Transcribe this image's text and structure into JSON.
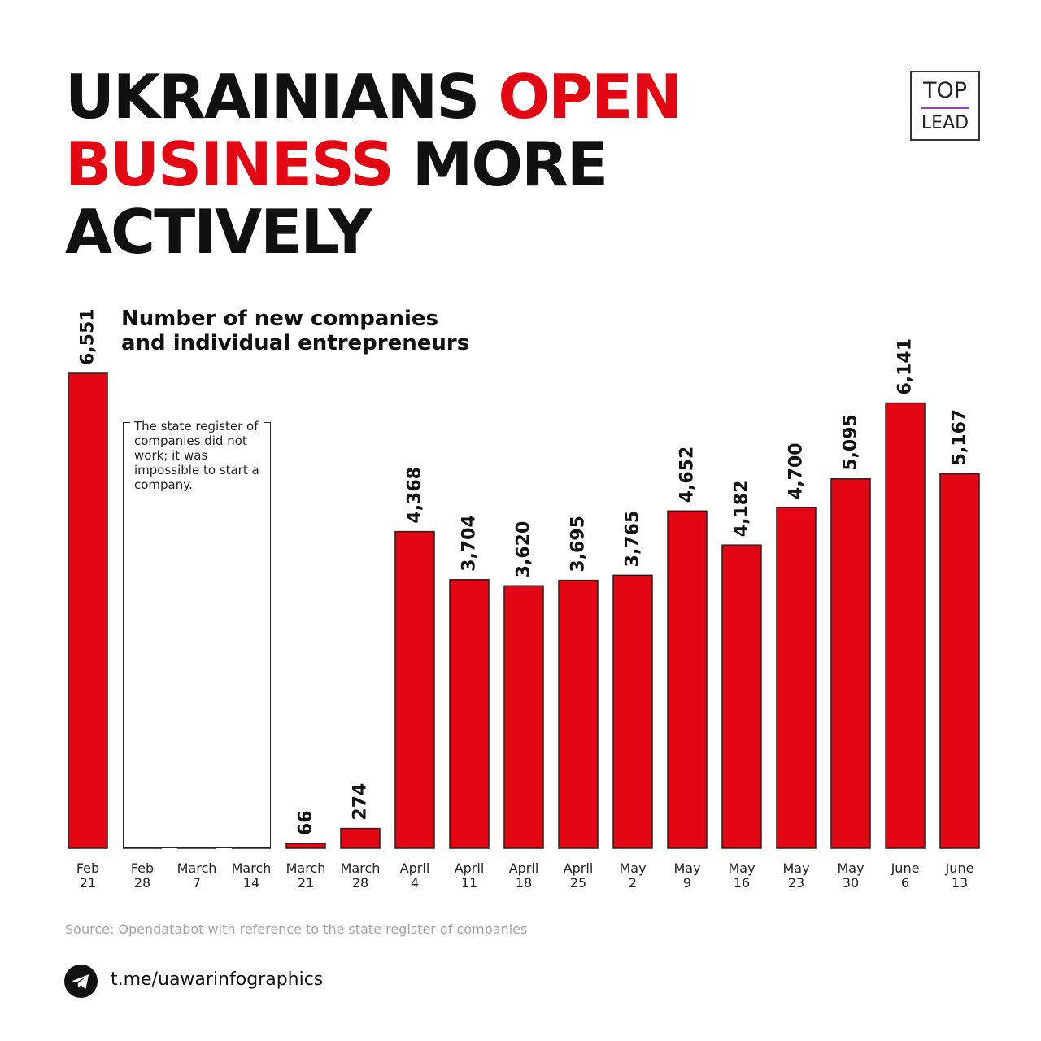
{
  "headline": {
    "line1_a": "UKRAINIANS ",
    "line1_b": "OPEN",
    "line2_a": "BUSINESS",
    "line2_b": " MORE",
    "line3": "ACTIVELY"
  },
  "logo": {
    "top": "TOP",
    "bottom": "LEAD"
  },
  "subtitle": {
    "line1": "Number of new companies",
    "line2": "and individual entrepreneurs"
  },
  "note": {
    "text": "The state register of companies did not work; it was impossible to start a company."
  },
  "source": "Source: Opendatabot with reference to the state register of companies",
  "link": "t.me/uawarinfographics",
  "icons": {
    "telegram": "telegram-icon"
  },
  "colors": {
    "accent": "#e30613",
    "bar_border": "#222222",
    "text": "#111111",
    "source": "#a5a5a5"
  },
  "chart_data": {
    "type": "bar",
    "title": "Number of new companies and individual entrepreneurs",
    "categories": [
      [
        "Feb",
        "21"
      ],
      [
        "Feb",
        "28"
      ],
      [
        "March",
        "7"
      ],
      [
        "March",
        "14"
      ],
      [
        "March",
        "21"
      ],
      [
        "March",
        "28"
      ],
      [
        "April",
        "4"
      ],
      [
        "April",
        "11"
      ],
      [
        "April",
        "18"
      ],
      [
        "April",
        "25"
      ],
      [
        "May",
        "2"
      ],
      [
        "May",
        "9"
      ],
      [
        "May",
        "16"
      ],
      [
        "May",
        "23"
      ],
      [
        "May",
        "30"
      ],
      [
        "June",
        "6"
      ],
      [
        "June",
        "13"
      ]
    ],
    "values": [
      6551,
      0,
      0,
      0,
      66,
      274,
      4368,
      3704,
      3620,
      3695,
      3765,
      4652,
      4182,
      4700,
      5095,
      6141,
      5167
    ],
    "value_labels": [
      "6,551",
      "",
      "",
      "",
      "66",
      "274",
      "4,368",
      "3,704",
      "3,620",
      "3,695",
      "3,765",
      "4,652",
      "4,182",
      "4,700",
      "5,095",
      "6,141",
      "5,167"
    ],
    "bar_color": "#e30613",
    "ylim": [
      0,
      6551
    ],
    "grid": false,
    "legend": "none"
  }
}
